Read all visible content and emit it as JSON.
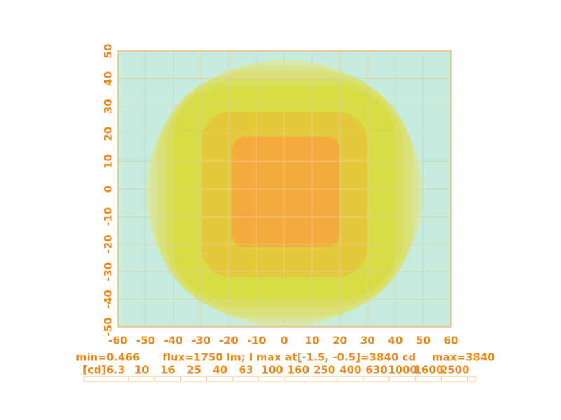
{
  "chart_data": {
    "type": "contour",
    "xlim": [
      -60,
      60
    ],
    "xticks": [
      -60,
      -50,
      -40,
      -30,
      -20,
      -10,
      0,
      10,
      20,
      30,
      40,
      50,
      60
    ],
    "ylim": [
      -50,
      50
    ],
    "yticks": [
      -50,
      -40,
      -30,
      -20,
      -10,
      0,
      10,
      20,
      30,
      40,
      50
    ],
    "grid": true,
    "background": "#c6ebdf",
    "contours": [
      {
        "level": 160,
        "color": "#d6e9b0",
        "x": [
          -50,
          50
        ],
        "y": [
          -50,
          47
        ]
      },
      {
        "level": 250,
        "color": "#d8e597",
        "x": [
          -48,
          48
        ],
        "y": [
          -48,
          45
        ]
      },
      {
        "level": 400,
        "color": "#d9e27a",
        "x": [
          -46,
          46
        ],
        "y": [
          -46,
          43
        ]
      },
      {
        "level": 630,
        "color": "#d8df5c",
        "x": [
          -43,
          43
        ],
        "y": [
          -43,
          40
        ]
      },
      {
        "level": 1000,
        "color": "#d6dd42",
        "x": [
          -40,
          40
        ],
        "y": [
          -40,
          37
        ]
      },
      {
        "level": 1600,
        "color": "#e4c93a",
        "x": [
          -30,
          30
        ],
        "y": [
          -32,
          28
        ]
      },
      {
        "level": 2500,
        "color": "#f5ab3d",
        "x": [
          -19,
          20
        ],
        "y": [
          -21,
          19
        ]
      }
    ],
    "min_label": "min=0.466",
    "info": "flux=1750 lm; I max  at[-1.5, -0.5]=3840 cd",
    "max_label": "max=3840",
    "legend_unit": "[cd]",
    "levels": [
      6.3,
      10,
      16,
      25,
      40,
      63,
      100,
      160,
      250,
      400,
      630,
      1000,
      1600,
      2500
    ]
  }
}
